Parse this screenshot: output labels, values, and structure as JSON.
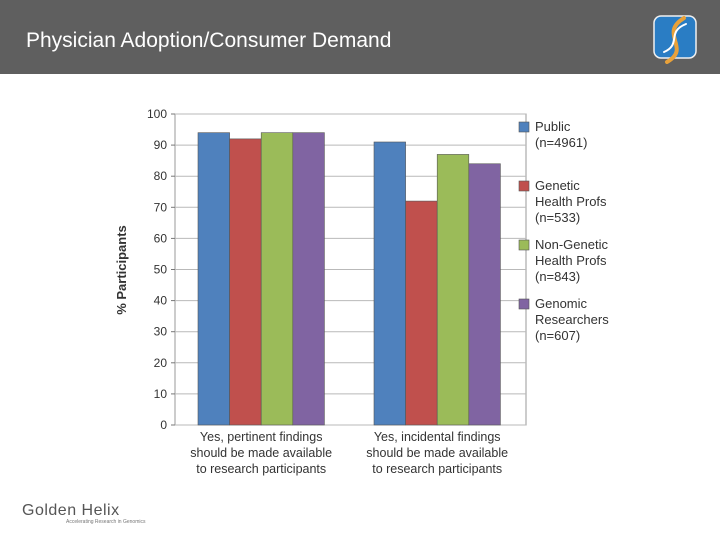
{
  "header": {
    "title": "Physician Adoption/Consumer Demand"
  },
  "footer": {
    "logo_name": "Golden Helix",
    "logo_tagline": "Accelerating Research in Genomics"
  },
  "colors": {
    "header_bg": "#5f5f5f",
    "grid": "#b9b9b9"
  },
  "chart_data": {
    "type": "bar",
    "title": "",
    "xlabel": "",
    "ylabel": "% Participants",
    "ylim": [
      0,
      100
    ],
    "yticks": [
      0,
      10,
      20,
      30,
      40,
      50,
      60,
      70,
      80,
      90,
      100
    ],
    "grid": true,
    "legend_position": "right",
    "categories": [
      [
        "Yes, pertinent findings",
        "should be made available",
        "to research participants"
      ],
      [
        "Yes, incidental findings",
        "should be made available",
        "to research participants"
      ]
    ],
    "series": [
      {
        "name": "Public",
        "legend_lines": [
          "Public",
          "(n=4961)"
        ],
        "color": "#4f81bd",
        "values": [
          94,
          91
        ]
      },
      {
        "name": "Genetic Health Profs",
        "legend_lines": [
          "Genetic",
          "Health Profs",
          "(n=533)"
        ],
        "color": "#c0504d",
        "values": [
          92,
          72
        ]
      },
      {
        "name": "Non-Genetic Health Profs",
        "legend_lines": [
          "Non-Genetic",
          "Health Profs",
          "(n=843)"
        ],
        "color": "#9bbb59",
        "values": [
          94,
          87
        ]
      },
      {
        "name": "Genomic Researchers",
        "legend_lines": [
          "Genomic",
          "Researchers",
          "(n=607)"
        ],
        "color": "#8064a2",
        "values": [
          94,
          84
        ]
      }
    ]
  }
}
